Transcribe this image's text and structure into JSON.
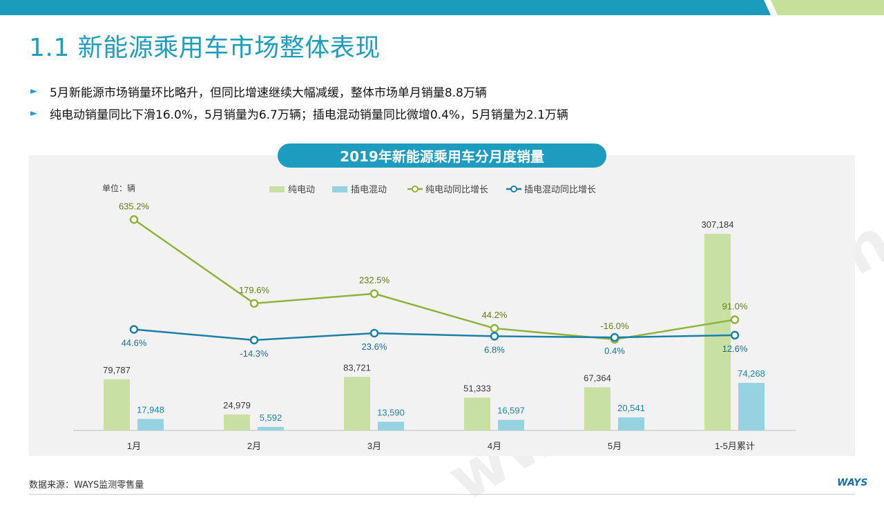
{
  "page": {
    "title": "1.1 新能源乘用车市场整体表现",
    "bullets": [
      "5月新能源市场销量环比略升，但同比增速继续大幅减缓，整体市场单月销量8.8万辆",
      "纯电动销量同比下滑16.0%，5月销量为6.7万辆；插电混动销量同比微增0.4%，5月销量为2.1万辆"
    ],
    "source": "数据来源：WAYS监测零售量",
    "logo": "WAYS",
    "watermark": "www.way-s.cn"
  },
  "colors": {
    "topbar_blue": "#1a9cbd",
    "topbar_green": "#c6df9b",
    "bev_bar": "#c9e0a4",
    "phev_bar": "#95d3e0",
    "bev_line": "#8db33a",
    "phev_line": "#1a7fa6",
    "title_blue": "#1f9dbb"
  },
  "chart_data": {
    "type": "bar",
    "title": "2019年新能源乘用车分月度销量",
    "unit_label": "单位：辆",
    "categories": [
      "1月",
      "2月",
      "3月",
      "4月",
      "5月",
      "1-5月累计"
    ],
    "series": [
      {
        "name": "纯电动",
        "kind": "bar",
        "values": [
          79787,
          24979,
          83721,
          51333,
          67364,
          307184
        ],
        "labels": [
          "79,787",
          "24,979",
          "83,721",
          "51,333",
          "67,364",
          "307,184"
        ]
      },
      {
        "name": "插电混动",
        "kind": "bar",
        "values": [
          17948,
          5592,
          13590,
          16597,
          20541,
          74268
        ],
        "labels": [
          "17,948",
          "5,592",
          "13,590",
          "16,597",
          "20,541",
          "74,268"
        ]
      },
      {
        "name": "纯电动同比增长",
        "kind": "line",
        "values": [
          635.2,
          179.6,
          232.5,
          44.2,
          -16.0,
          91.0
        ],
        "labels": [
          "635.2%",
          "179.6%",
          "232.5%",
          "44.2%",
          "-16.0%",
          "91.0%"
        ]
      },
      {
        "name": "插电混动同比增长",
        "kind": "line",
        "values": [
          44.6,
          -14.3,
          23.6,
          6.8,
          0.4,
          12.6
        ],
        "labels": [
          "44.6%",
          "-14.3%",
          "23.6%",
          "6.8%",
          "0.4%",
          "12.6%"
        ]
      }
    ],
    "legend_position": "top",
    "grid": false
  }
}
